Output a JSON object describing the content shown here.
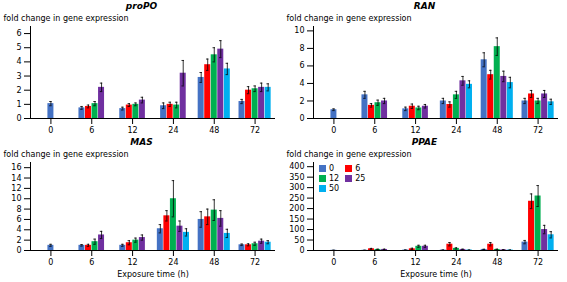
{
  "chart_data": [
    {
      "type": "bar",
      "title": "proPO",
      "categories": [
        "0",
        "6",
        "12",
        "24",
        "48",
        "72"
      ],
      "series": [
        {
          "name": "0",
          "color": "#4472C4",
          "values": [
            1.05,
            0.75,
            0.7,
            0.9,
            2.9,
            1.2
          ],
          "errors": [
            0.15,
            0.1,
            0.1,
            0.2,
            0.35,
            0.15
          ]
        },
        {
          "name": "6",
          "color": "#FF0000",
          "values": [
            null,
            0.85,
            0.95,
            1.0,
            3.8,
            2.0
          ],
          "errors": [
            null,
            0.1,
            0.1,
            0.15,
            0.4,
            0.25
          ]
        },
        {
          "name": "12",
          "color": "#00B050",
          "values": [
            null,
            1.05,
            1.0,
            0.95,
            4.5,
            2.1
          ],
          "errors": [
            null,
            0.15,
            0.1,
            0.2,
            0.5,
            0.2
          ]
        },
        {
          "name": "25",
          "color": "#7030A0",
          "values": [
            null,
            2.2,
            1.3,
            3.2,
            4.9,
            2.2
          ],
          "errors": [
            null,
            0.3,
            0.2,
            0.9,
            0.6,
            0.3
          ]
        },
        {
          "name": "50",
          "color": "#00B0F0",
          "values": [
            null,
            null,
            null,
            null,
            3.5,
            2.2
          ],
          "errors": [
            null,
            null,
            null,
            null,
            0.4,
            0.25
          ]
        }
      ],
      "ylabel": "fold change in gene expression",
      "ylim": [
        0,
        6.5
      ],
      "yticks": [
        0,
        1,
        2,
        3,
        4,
        5,
        6
      ]
    },
    {
      "type": "bar",
      "title": "RAN",
      "categories": [
        "0",
        "6",
        "12",
        "24",
        "48",
        "72"
      ],
      "series": [
        {
          "name": "0",
          "color": "#4472C4",
          "values": [
            1.0,
            2.7,
            1.1,
            2.0,
            6.7,
            2.0
          ],
          "errors": [
            0.1,
            0.4,
            0.2,
            0.3,
            0.8,
            0.3
          ]
        },
        {
          "name": "6",
          "color": "#FF0000",
          "values": [
            null,
            1.5,
            1.4,
            1.6,
            5.0,
            2.8
          ],
          "errors": [
            null,
            0.2,
            0.25,
            0.3,
            0.5,
            0.4
          ]
        },
        {
          "name": "12",
          "color": "#00B050",
          "values": [
            null,
            1.8,
            1.2,
            2.7,
            8.2,
            2.0
          ],
          "errors": [
            null,
            0.3,
            0.2,
            0.4,
            1.0,
            0.3
          ]
        },
        {
          "name": "25",
          "color": "#7030A0",
          "values": [
            null,
            2.0,
            1.4,
            4.3,
            4.8,
            2.8
          ],
          "errors": [
            null,
            0.3,
            0.2,
            0.5,
            0.6,
            0.4
          ]
        },
        {
          "name": "50",
          "color": "#00B0F0",
          "values": [
            null,
            null,
            null,
            3.9,
            4.1,
            1.9
          ],
          "errors": [
            null,
            null,
            null,
            0.4,
            0.6,
            0.3
          ]
        }
      ],
      "ylabel": "fold change in gene expression",
      "ylim": [
        0,
        10.5
      ],
      "yticks": [
        0,
        2,
        4,
        6,
        8,
        10
      ]
    },
    {
      "type": "bar",
      "title": "MAS",
      "categories": [
        "0",
        "6",
        "12",
        "24",
        "48",
        "72"
      ],
      "series": [
        {
          "name": "0",
          "color": "#4472C4",
          "values": [
            1.0,
            1.0,
            1.0,
            4.2,
            6.0,
            1.1
          ],
          "errors": [
            0.2,
            0.15,
            0.2,
            0.8,
            1.5,
            0.15
          ]
        },
        {
          "name": "6",
          "color": "#FF0000",
          "values": [
            null,
            1.0,
            1.5,
            6.7,
            6.5,
            1.1
          ],
          "errors": [
            null,
            0.2,
            0.4,
            1.0,
            1.5,
            0.2
          ]
        },
        {
          "name": "12",
          "color": "#00B050",
          "values": [
            null,
            1.7,
            2.0,
            10.0,
            7.8,
            1.3
          ],
          "errors": [
            null,
            0.5,
            0.4,
            3.5,
            2.0,
            0.3
          ]
        },
        {
          "name": "25",
          "color": "#7030A0",
          "values": [
            null,
            3.0,
            2.5,
            4.7,
            6.2,
            1.8
          ],
          "errors": [
            null,
            0.7,
            0.5,
            1.0,
            1.5,
            0.4
          ]
        },
        {
          "name": "50",
          "color": "#00B0F0",
          "values": [
            null,
            null,
            null,
            3.5,
            3.3,
            1.6
          ],
          "errors": [
            null,
            null,
            null,
            0.7,
            0.8,
            0.3
          ]
        }
      ],
      "xlabel": "Exposure time (h)",
      "ylabel": "fold change in gene expression",
      "ylim": [
        0,
        17
      ],
      "yticks": [
        0,
        2,
        4,
        6,
        8,
        10,
        12,
        14,
        16
      ]
    },
    {
      "type": "bar",
      "title": "PPAE",
      "categories": [
        "0",
        "6",
        "12",
        "24",
        "48",
        "72"
      ],
      "series": [
        {
          "name": "0",
          "color": "#4472C4",
          "values": [
            1.0,
            1.0,
            2.0,
            2.0,
            5.0,
            40.0
          ],
          "errors": [
            0.5,
            0.5,
            0.5,
            0.5,
            1.0,
            8.0
          ]
        },
        {
          "name": "6",
          "color": "#FF0000",
          "values": [
            null,
            8.0,
            8.0,
            30.0,
            30.0,
            235.0
          ],
          "errors": [
            null,
            2.0,
            3.0,
            8.0,
            8.0,
            35.0
          ]
        },
        {
          "name": "12",
          "color": "#00B050",
          "values": [
            null,
            5.0,
            20.0,
            10.0,
            5.0,
            260.0
          ],
          "errors": [
            null,
            1.5,
            5.0,
            3.0,
            1.5,
            50.0
          ]
        },
        {
          "name": "25",
          "color": "#7030A0",
          "values": [
            null,
            5.0,
            20.0,
            5.0,
            3.0,
            100.0
          ],
          "errors": [
            null,
            1.5,
            5.0,
            1.5,
            1.0,
            20.0
          ]
        },
        {
          "name": "50",
          "color": "#00B0F0",
          "values": [
            null,
            null,
            null,
            2.0,
            2.0,
            75.0
          ],
          "errors": [
            null,
            null,
            null,
            0.5,
            0.5,
            15.0
          ]
        }
      ],
      "xlabel": "Exposure time (h)",
      "ylabel": "fold change in gene expression",
      "ylim": [
        0,
        420
      ],
      "yticks": [
        0,
        50,
        100,
        150,
        200,
        250,
        300,
        350,
        400
      ],
      "legend": "upper left"
    }
  ]
}
